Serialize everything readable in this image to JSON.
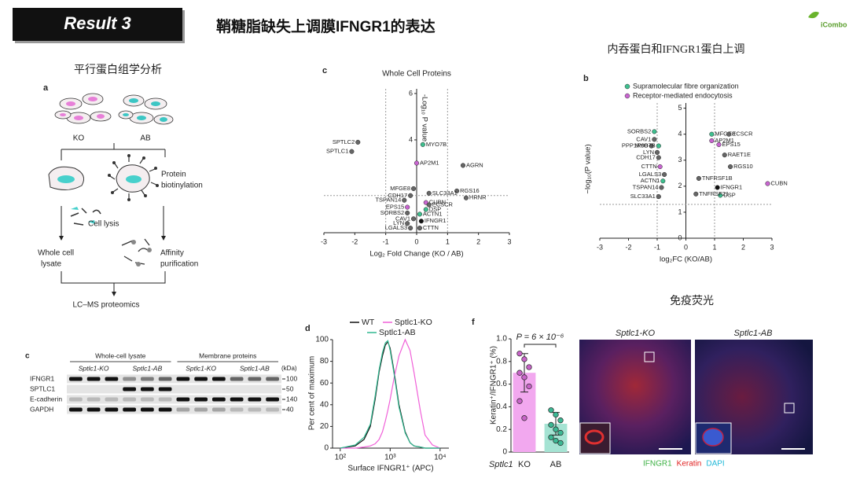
{
  "header": {
    "badge": "Result 3",
    "title": "鞘糖脂缺失上调膜IFNGR1的表达",
    "logo": "iCombo"
  },
  "sections": {
    "proteomics": "平行蛋白组学分析",
    "endocytosis": "内吞蛋白和IFNGR1蛋白上调",
    "immuno": "免疫荧光"
  },
  "diagram": {
    "label": "a",
    "ko": "KO",
    "ab": "AB",
    "biotinylation": [
      "Protein",
      "biotinylation"
    ],
    "lysis": "Cell lysis",
    "whole": [
      "Whole cell",
      "lysate"
    ],
    "affinity": [
      "Affinity",
      "purification"
    ],
    "lcms": "LC–MS proteomics"
  },
  "blot": {
    "label": "c",
    "groups": [
      "Whole-cell lysate",
      "Membrane proteins"
    ],
    "lanes": [
      "Sptlc1-KO",
      "Sptlc1-AB",
      "Sptlc1-KO",
      "Sptlc1-AB"
    ],
    "unit": "(kDa)",
    "rows": [
      "IFNGR1",
      "SPTLC1",
      "E-cadherin",
      "GAPDH"
    ],
    "sizes": [
      "100",
      "50",
      "140",
      "40"
    ]
  },
  "immunofluorescence": {
    "panels": [
      "Sptlc1-KO",
      "Sptlc1-AB"
    ],
    "stains": [
      {
        "name": "IFNGR1",
        "color": "#3cb043"
      },
      {
        "name": "Keratin",
        "color": "#e02020"
      },
      {
        "name": "DAPI",
        "color": "#20b8d8"
      }
    ]
  },
  "chart_data": [
    {
      "type": "scatter",
      "panel": "c",
      "title": "Whole Cell Proteins",
      "xlabel": "Log₂ Fold Change (KO / AB)",
      "ylabel": "-Log₁₀ P value",
      "xlim": [
        -3,
        3
      ],
      "ylim": [
        0,
        6.2
      ],
      "xticks": [
        -3,
        -2,
        -1,
        0,
        1,
        2,
        3
      ],
      "yticks": [
        4,
        6
      ],
      "guide_x": [
        -1,
        1
      ],
      "guide_y": 1.6,
      "labels": [
        "SPTLC2",
        "SPTLC1",
        "MYO7B",
        "AP2M1",
        "AGRN",
        "RGS16",
        "HRNR",
        "MFGE8",
        "SLC33A1",
        "CDH17",
        "TSPAN14",
        "CUBN",
        "ECSCR",
        "EPS15",
        "DSP",
        "SORBS2",
        "ACTN1",
        "CAV1",
        "IFNGR1",
        "LYN",
        "LGALS3",
        "CTTN"
      ],
      "x": [
        -1.9,
        -2.1,
        0.2,
        0.0,
        1.5,
        1.3,
        1.6,
        -0.1,
        0.4,
        -0.2,
        -0.4,
        0.3,
        0.4,
        -0.3,
        0.3,
        -0.3,
        0.1,
        -0.1,
        0.15,
        -0.3,
        -0.2,
        0.1
      ],
      "y": [
        3.9,
        3.5,
        3.8,
        3.0,
        2.9,
        1.8,
        1.5,
        1.9,
        1.7,
        1.6,
        1.4,
        1.3,
        1.2,
        1.1,
        1.0,
        0.85,
        0.8,
        0.6,
        0.5,
        0.4,
        0.2,
        0.2
      ],
      "colors": [
        "#666666",
        "#666666",
        "#3fbf8f",
        "#c865d0",
        "#666666",
        "#666666",
        "#666666",
        "#666666",
        "#666666",
        "#666666",
        "#666666",
        "#c865d0",
        "#666666",
        "#c865d0",
        "#3fbf8f",
        "#666666",
        "#3fbf8f",
        "#666666",
        "#111111",
        "#666666",
        "#666666",
        "#666666"
      ]
    },
    {
      "type": "scatter",
      "panel": "b",
      "xlabel": "log₂FC (KO/AB)",
      "ylabel": "−log₁₀(P value)",
      "legend": [
        {
          "name": "Supramolecular fibre organization",
          "color": "#3fbf8f"
        },
        {
          "name": "Receptor-mediated endocytosis",
          "color": "#c865d0"
        }
      ],
      "xlim": [
        -3,
        3
      ],
      "ylim": [
        0,
        5.2
      ],
      "xticks": [
        -3,
        -2,
        -1,
        0,
        1,
        2,
        3
      ],
      "yticks": [
        0,
        1,
        2,
        3,
        4,
        5
      ],
      "guide_x": [
        -1,
        1
      ],
      "guide_y": 1.3,
      "labels": [
        "SORBS2",
        "CAV1",
        "PPP1R9B",
        "MYO7B",
        "LYN",
        "CDH17",
        "CTTN",
        "LGALS3",
        "ACTN1",
        "TSPAN14",
        "SLC33A1",
        "MFGE8",
        "ECSCR",
        "AP2M1",
        "EPS15",
        "RAET1E",
        "RGS10",
        "TNFRSF1B",
        "IFNGR1",
        "DSP",
        "TNFRSF21",
        "CUBN"
      ],
      "x": [
        -1.1,
        -1.1,
        -1.2,
        -0.95,
        -1.0,
        -0.95,
        -0.9,
        -0.75,
        -0.8,
        -0.85,
        -0.95,
        0.9,
        1.5,
        0.9,
        1.15,
        1.35,
        1.55,
        0.45,
        1.1,
        1.2,
        0.35,
        2.85
      ],
      "y": [
        4.1,
        3.8,
        3.55,
        3.55,
        3.3,
        3.1,
        2.75,
        2.45,
        2.2,
        1.95,
        1.6,
        4.0,
        4.0,
        3.75,
        3.6,
        3.2,
        2.75,
        2.3,
        1.95,
        1.65,
        1.7,
        2.1
      ],
      "colors": [
        "#3fbf8f",
        "#666666",
        "#666666",
        "#3fbf8f",
        "#666666",
        "#666666",
        "#c865d0",
        "#666666",
        "#3fbf8f",
        "#666666",
        "#666666",
        "#3fbf8f",
        "#666666",
        "#c865d0",
        "#c865d0",
        "#666666",
        "#666666",
        "#666666",
        "#111111",
        "#3fbf8f",
        "#666666",
        "#c865d0"
      ]
    },
    {
      "type": "line",
      "panel": "d",
      "xscale": "log",
      "xlabel": "Surface IFNGR1⁺ (APC)",
      "ylabel": "Per cent of maximum",
      "xlim": [
        70,
        15000
      ],
      "ylim": [
        0,
        100
      ],
      "xticks": [
        {
          "value": 100,
          "label": "10²"
        },
        {
          "value": 1000,
          "label": "10³"
        },
        {
          "value": 10000,
          "label": "10⁴"
        }
      ],
      "yticks": [
        0,
        20,
        40,
        60,
        80,
        100
      ],
      "x": [
        100,
        200,
        300,
        400,
        500,
        600,
        700,
        800,
        900,
        1000,
        1200,
        1500,
        2000,
        2500,
        3000,
        4000,
        5000,
        7000,
        10000
      ],
      "series": [
        {
          "name": "WT",
          "color": "#111111",
          "values": [
            0,
            2,
            8,
            20,
            45,
            70,
            85,
            95,
            98,
            92,
            70,
            40,
            15,
            5,
            2,
            1,
            0,
            0,
            0
          ]
        },
        {
          "name": "Sptlc1-KO",
          "color": "#f060d8",
          "values": [
            0,
            0,
            1,
            2,
            4,
            8,
            15,
            25,
            35,
            45,
            65,
            85,
            100,
            90,
            70,
            35,
            12,
            3,
            0
          ]
        },
        {
          "name": "Sptlc1-AB",
          "color": "#30b890",
          "values": [
            0,
            3,
            10,
            22,
            48,
            72,
            88,
            97,
            99,
            90,
            68,
            38,
            14,
            5,
            2,
            1,
            0,
            0,
            0
          ]
        }
      ]
    },
    {
      "type": "bar",
      "panel": "f",
      "xlabel": "Sptlc1",
      "ylabel": "Keratin⁺/IFNGR1⁺ (%)",
      "annotation": "P = 6 × 10⁻⁶",
      "categories": [
        "KO",
        "AB"
      ],
      "values": [
        0.7,
        0.25
      ],
      "errors": [
        0.17,
        0.1
      ],
      "colors": [
        "#f2a8ef",
        "#a5e3d3"
      ],
      "point_colors": [
        "#c864c8",
        "#3cb894"
      ],
      "points": [
        [
          0.87,
          0.82,
          0.75,
          0.7,
          0.66,
          0.58,
          0.45,
          0.3
        ],
        [
          0.37,
          0.33,
          0.28,
          0.24,
          0.2,
          0.17,
          0.13,
          0.1,
          0.08
        ]
      ],
      "ylim": [
        0,
        1.0
      ],
      "yticks": [
        0,
        0.2,
        0.4,
        0.6,
        0.8,
        {
          "value": 1.0,
          "label": "1.0"
        }
      ]
    }
  ]
}
